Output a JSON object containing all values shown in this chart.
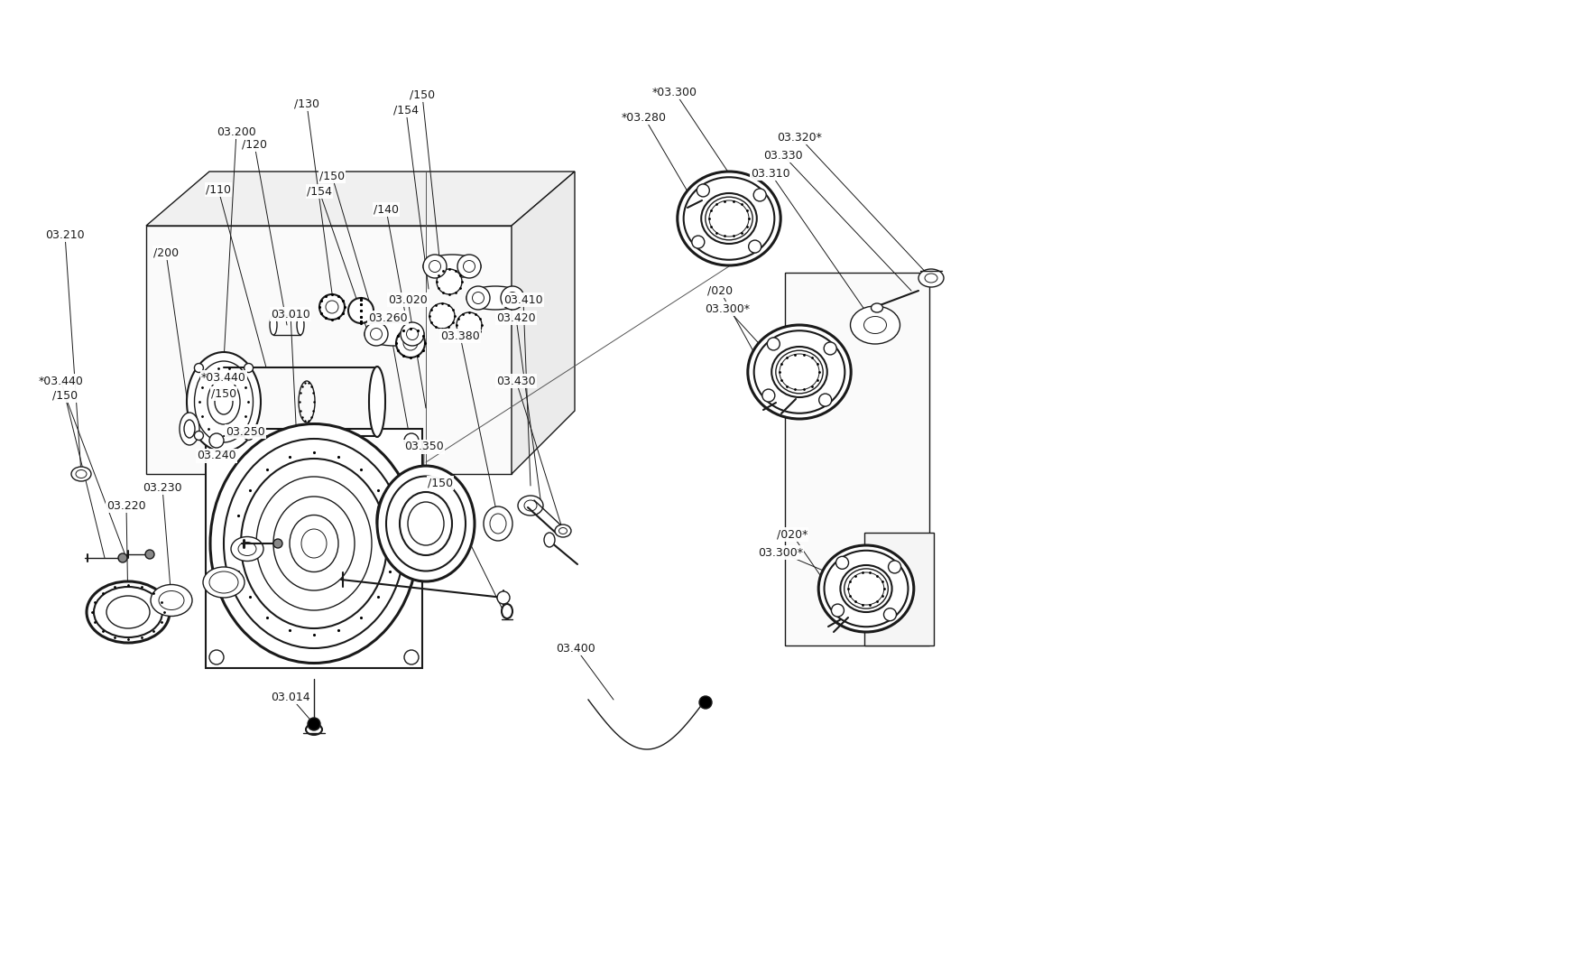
{
  "bg_color": "#ffffff",
  "line_color": "#1a1a1a",
  "fig_width": 17.4,
  "fig_height": 10.7,
  "dpi": 100
}
